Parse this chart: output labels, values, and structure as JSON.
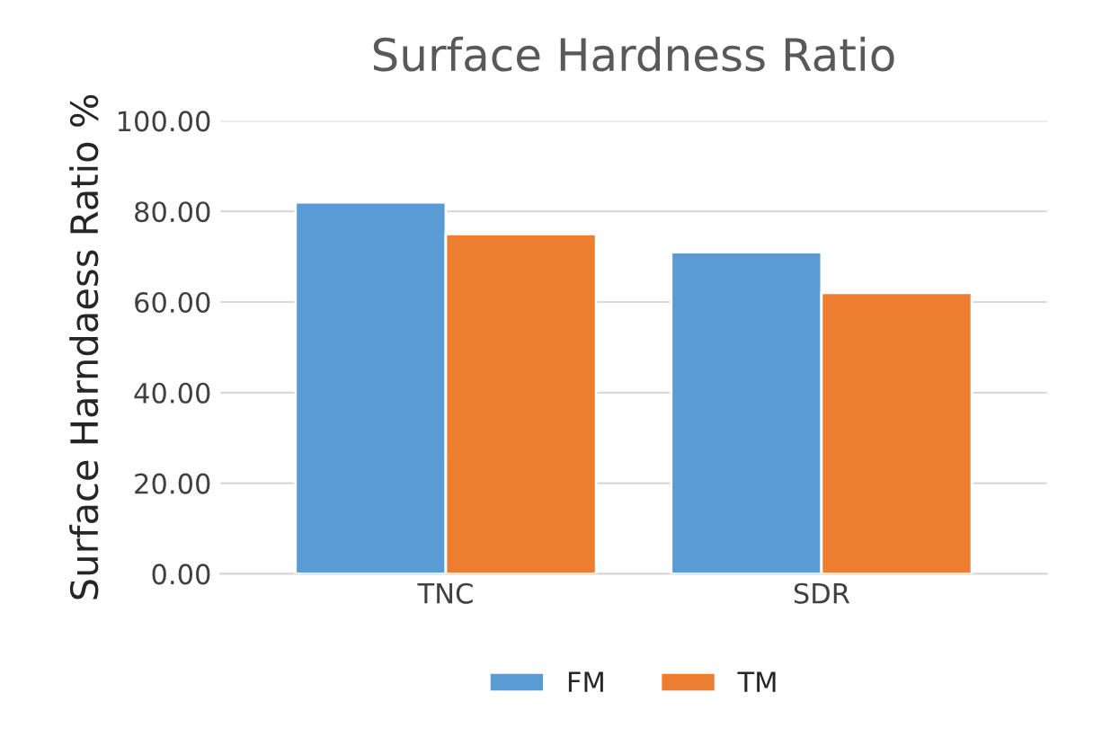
{
  "chart_data": {
    "type": "bar",
    "title": "Surface Hardness Ratio",
    "ylabel": "Surface Harndaess Ratio %",
    "categories": [
      "TNC",
      "SDR"
    ],
    "series": [
      {
        "name": "FM",
        "color": "#5b9bd5",
        "values": [
          82,
          71
        ]
      },
      {
        "name": "TM",
        "color": "#ed7d31",
        "values": [
          75,
          62
        ]
      }
    ],
    "ylim": [
      0,
      100
    ],
    "yticks": [
      {
        "value": 0,
        "label": "0.00"
      },
      {
        "value": 20,
        "label": "20.00"
      },
      {
        "value": 40,
        "label": "40.00"
      },
      {
        "value": 60,
        "label": "60.00"
      },
      {
        "value": 80,
        "label": "80.00"
      },
      {
        "value": 100,
        "label": "100.00"
      }
    ],
    "grid": "y",
    "legend": "bottom"
  }
}
